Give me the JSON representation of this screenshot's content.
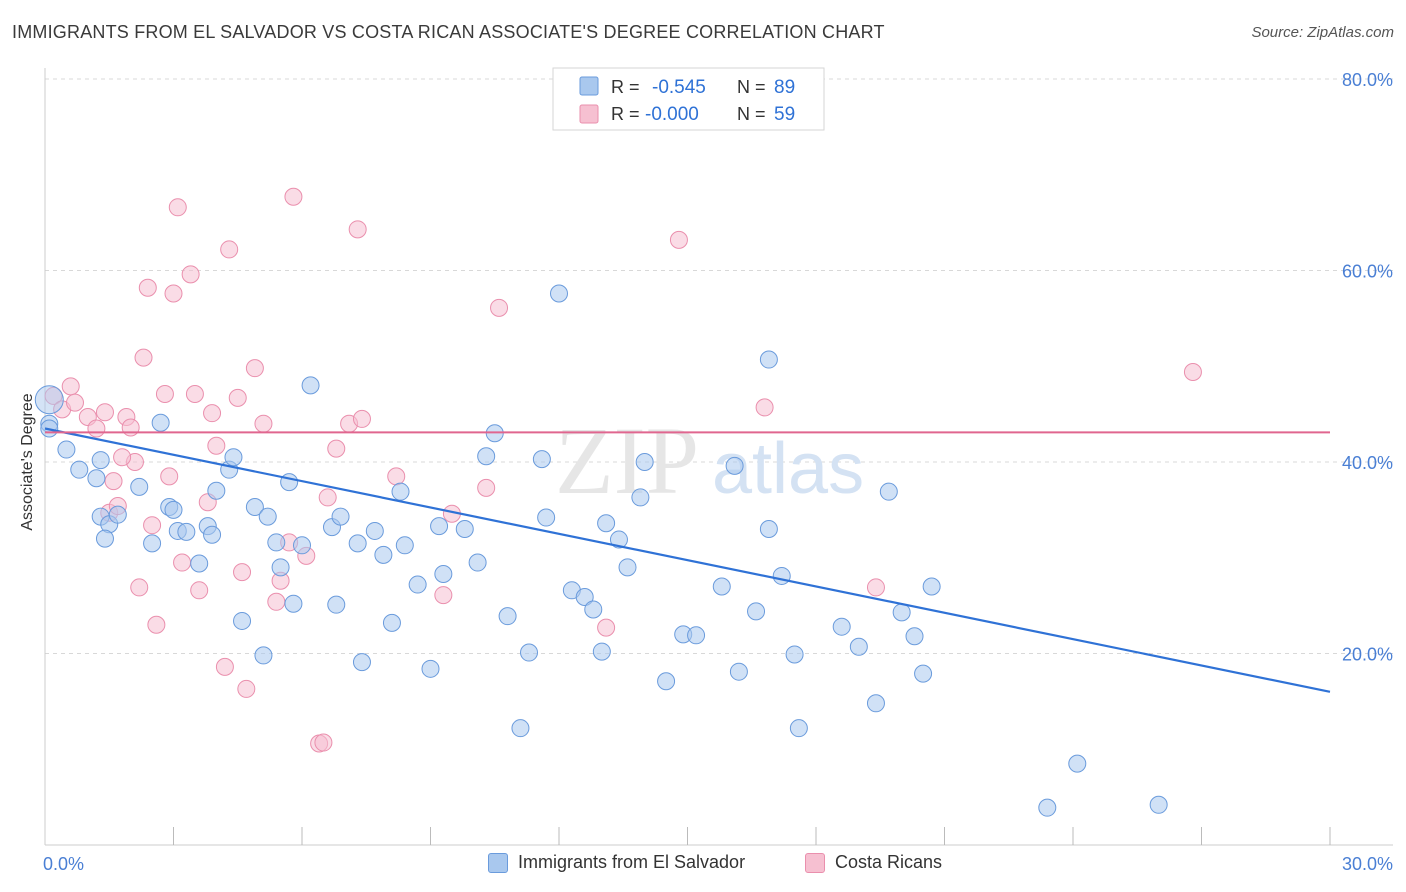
{
  "title": "IMMIGRANTS FROM EL SALVADOR VS COSTA RICAN ASSOCIATE'S DEGREE CORRELATION CHART",
  "source": "Source: ZipAtlas.com",
  "watermark": {
    "zip": "ZIP",
    "atlas": "atlas"
  },
  "colors": {
    "blue_fill": "#a9c8ee",
    "blue_stroke": "#6a9bdc",
    "blue_line": "#2f72d6",
    "pink_fill": "#f6c0d1",
    "pink_stroke": "#ea8fad",
    "pink_line": "#e0668f",
    "tick_label": "#4a7fd4",
    "grid": "#d8d8d8"
  },
  "legend": [
    {
      "r_label": "R = ",
      "r_value": "-0.545",
      "n_label": "N = ",
      "n_value": "89"
    },
    {
      "r_label": "R = ",
      "r_value": "-0.000",
      "n_label": "N = ",
      "n_value": "59"
    }
  ],
  "chart_data": {
    "type": "scatter",
    "title": "IMMIGRANTS FROM EL SALVADOR VS COSTA RICAN ASSOCIATE'S DEGREE CORRELATION CHART",
    "xlabel": "",
    "ylabel": "Associate's Degree",
    "xlim": [
      0,
      30
    ],
    "ylim": [
      0,
      80
    ],
    "x_tick_labels": [
      "0.0%",
      "30.0%"
    ],
    "y_ticks": [
      20,
      40,
      60,
      80
    ],
    "y_tick_labels": [
      "20.0%",
      "40.0%",
      "60.0%",
      "80.0%"
    ],
    "grid": true,
    "legend_position": "top-center",
    "series": [
      {
        "name": "Immigrants from El Salvador",
        "color": "#a9c8ee",
        "trend": {
          "x": [
            0,
            30
          ],
          "y": [
            43.5,
            16.0
          ]
        },
        "points": [
          [
            0.1,
            44.0
          ],
          [
            0.1,
            43.5
          ],
          [
            0.5,
            41.3
          ],
          [
            0.8,
            39.2
          ],
          [
            1.2,
            38.3
          ],
          [
            1.3,
            40.2
          ],
          [
            1.3,
            34.3
          ],
          [
            1.5,
            33.5
          ],
          [
            1.7,
            34.5
          ],
          [
            2.2,
            37.4
          ],
          [
            2.5,
            31.5
          ],
          [
            2.7,
            44.1
          ],
          [
            2.9,
            35.3
          ],
          [
            3.1,
            32.8
          ],
          [
            3.3,
            32.7
          ],
          [
            3.6,
            29.4
          ],
          [
            3.8,
            33.3
          ],
          [
            3.9,
            32.4
          ],
          [
            4.3,
            39.2
          ],
          [
            4.4,
            40.5
          ],
          [
            4.6,
            23.4
          ],
          [
            4.9,
            35.3
          ],
          [
            5.1,
            19.8
          ],
          [
            5.2,
            34.3
          ],
          [
            5.4,
            31.6
          ],
          [
            5.7,
            37.9
          ],
          [
            5.8,
            25.2
          ],
          [
            6.0,
            31.3
          ],
          [
            6.2,
            48.0
          ],
          [
            6.8,
            25.1
          ],
          [
            6.7,
            33.2
          ],
          [
            6.9,
            34.3
          ],
          [
            7.3,
            31.5
          ],
          [
            7.4,
            19.1
          ],
          [
            7.7,
            32.8
          ],
          [
            7.9,
            30.3
          ],
          [
            8.1,
            23.2
          ],
          [
            8.3,
            36.9
          ],
          [
            8.4,
            31.3
          ],
          [
            8.7,
            27.2
          ],
          [
            9.0,
            18.4
          ],
          [
            9.2,
            33.3
          ],
          [
            9.3,
            28.3
          ],
          [
            9.8,
            33.0
          ],
          [
            10.1,
            29.5
          ],
          [
            10.3,
            40.6
          ],
          [
            10.5,
            43.0
          ],
          [
            10.8,
            23.9
          ],
          [
            11.1,
            12.2
          ],
          [
            11.3,
            20.1
          ],
          [
            11.6,
            40.3
          ],
          [
            11.7,
            34.2
          ],
          [
            12.0,
            57.6
          ],
          [
            12.3,
            26.6
          ],
          [
            12.6,
            25.9
          ],
          [
            12.8,
            24.6
          ],
          [
            13.0,
            20.2
          ],
          [
            13.1,
            33.6
          ],
          [
            13.4,
            31.9
          ],
          [
            13.6,
            29.0
          ],
          [
            13.9,
            36.3
          ],
          [
            14.0,
            40.0
          ],
          [
            14.5,
            17.1
          ],
          [
            14.9,
            22.0
          ],
          [
            15.2,
            21.9
          ],
          [
            15.8,
            27.0
          ],
          [
            16.1,
            39.6
          ],
          [
            16.2,
            18.1
          ],
          [
            16.6,
            24.4
          ],
          [
            16.9,
            33.0
          ],
          [
            16.9,
            50.7
          ],
          [
            17.2,
            28.1
          ],
          [
            17.5,
            19.9
          ],
          [
            17.6,
            12.2
          ],
          [
            18.6,
            22.8
          ],
          [
            19.0,
            20.7
          ],
          [
            19.4,
            14.8
          ],
          [
            19.7,
            36.9
          ],
          [
            20.0,
            24.3
          ],
          [
            20.3,
            21.8
          ],
          [
            20.5,
            17.9
          ],
          [
            20.7,
            27.0
          ],
          [
            23.4,
            3.9
          ],
          [
            24.1,
            8.5
          ],
          [
            26.0,
            4.2
          ],
          [
            1.4,
            32.0
          ],
          [
            3.0,
            35.0
          ],
          [
            4.0,
            37.0
          ],
          [
            5.5,
            29.0
          ]
        ]
      },
      {
        "name": "Costa Ricans",
        "color": "#f6c0d1",
        "trend": {
          "x": [
            0,
            30
          ],
          "y": [
            43.1,
            43.1
          ]
        },
        "points": [
          [
            0.2,
            46.9
          ],
          [
            0.4,
            45.5
          ],
          [
            0.6,
            47.9
          ],
          [
            0.7,
            46.2
          ],
          [
            1.0,
            44.7
          ],
          [
            1.2,
            43.5
          ],
          [
            1.4,
            45.2
          ],
          [
            1.5,
            34.7
          ],
          [
            1.7,
            35.4
          ],
          [
            1.9,
            44.7
          ],
          [
            2.0,
            43.6
          ],
          [
            2.2,
            26.9
          ],
          [
            2.3,
            50.9
          ],
          [
            2.4,
            58.2
          ],
          [
            2.5,
            33.4
          ],
          [
            2.6,
            23.0
          ],
          [
            2.8,
            47.1
          ],
          [
            3.0,
            57.6
          ],
          [
            3.1,
            66.6
          ],
          [
            3.2,
            29.5
          ],
          [
            3.4,
            59.6
          ],
          [
            3.5,
            47.1
          ],
          [
            3.6,
            26.6
          ],
          [
            3.8,
            35.8
          ],
          [
            3.9,
            45.1
          ],
          [
            4.0,
            41.7
          ],
          [
            4.2,
            18.6
          ],
          [
            4.3,
            62.2
          ],
          [
            4.5,
            46.7
          ],
          [
            4.6,
            28.5
          ],
          [
            4.7,
            16.3
          ],
          [
            4.9,
            49.8
          ],
          [
            5.1,
            44.0
          ],
          [
            5.4,
            25.4
          ],
          [
            5.5,
            27.6
          ],
          [
            5.7,
            31.6
          ],
          [
            5.8,
            67.7
          ],
          [
            6.1,
            30.2
          ],
          [
            6.4,
            10.6
          ],
          [
            6.5,
            10.7
          ],
          [
            6.6,
            36.3
          ],
          [
            6.8,
            41.4
          ],
          [
            7.1,
            44.0
          ],
          [
            7.3,
            64.3
          ],
          [
            7.4,
            44.5
          ],
          [
            8.2,
            38.5
          ],
          [
            9.3,
            26.1
          ],
          [
            9.5,
            34.6
          ],
          [
            10.3,
            37.3
          ],
          [
            10.6,
            56.1
          ],
          [
            13.1,
            22.7
          ],
          [
            14.8,
            63.2
          ],
          [
            16.8,
            45.7
          ],
          [
            19.4,
            26.9
          ],
          [
            26.8,
            49.4
          ],
          [
            2.1,
            40.0
          ],
          [
            1.6,
            38.0
          ],
          [
            2.9,
            38.5
          ],
          [
            1.8,
            40.5
          ]
        ]
      }
    ]
  },
  "bottom_legend": [
    {
      "label": "Immigrants from El Salvador"
    },
    {
      "label": "Costa Ricans"
    }
  ]
}
